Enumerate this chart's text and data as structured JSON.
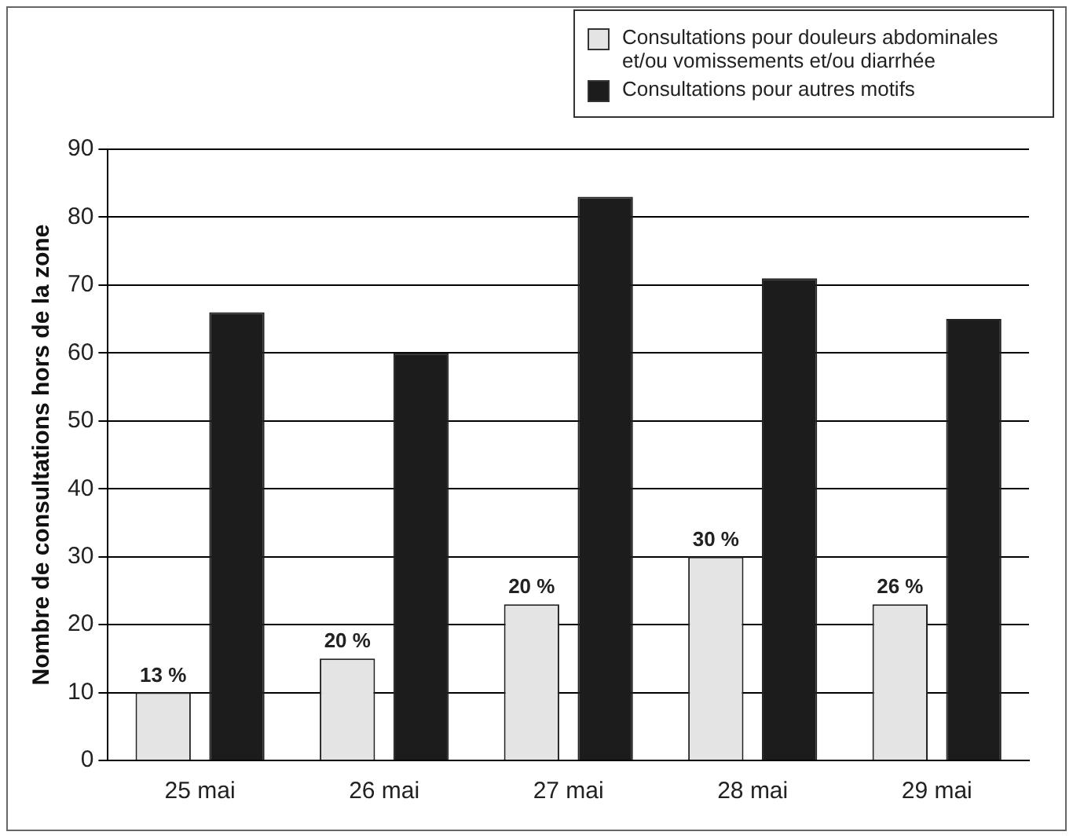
{
  "chart_data": {
    "type": "bar",
    "ylabel": "Nombre de consultations hors de la zone",
    "categories": [
      "25 mai",
      "26 mai",
      "27 mai",
      "28 mai",
      "29 mai"
    ],
    "series": [
      {
        "name": "Consultations pour douleurs abdominales et/ou vomissements et/ou diarrhée",
        "color": "#e4e4e4",
        "values": [
          10,
          15,
          23,
          30,
          23
        ]
      },
      {
        "name": "Consultations pour autres motifs",
        "color": "#1c1c1c",
        "values": [
          66,
          60,
          83,
          71,
          65
        ]
      }
    ],
    "ylim": [
      0,
      90
    ],
    "yticks": [
      0,
      10,
      20,
      30,
      40,
      50,
      60,
      70,
      80,
      90
    ],
    "grid": "y",
    "legend": "top right",
    "annotations": [
      "13 %",
      "20 %",
      "20 %",
      "30 %",
      "26 %"
    ]
  }
}
